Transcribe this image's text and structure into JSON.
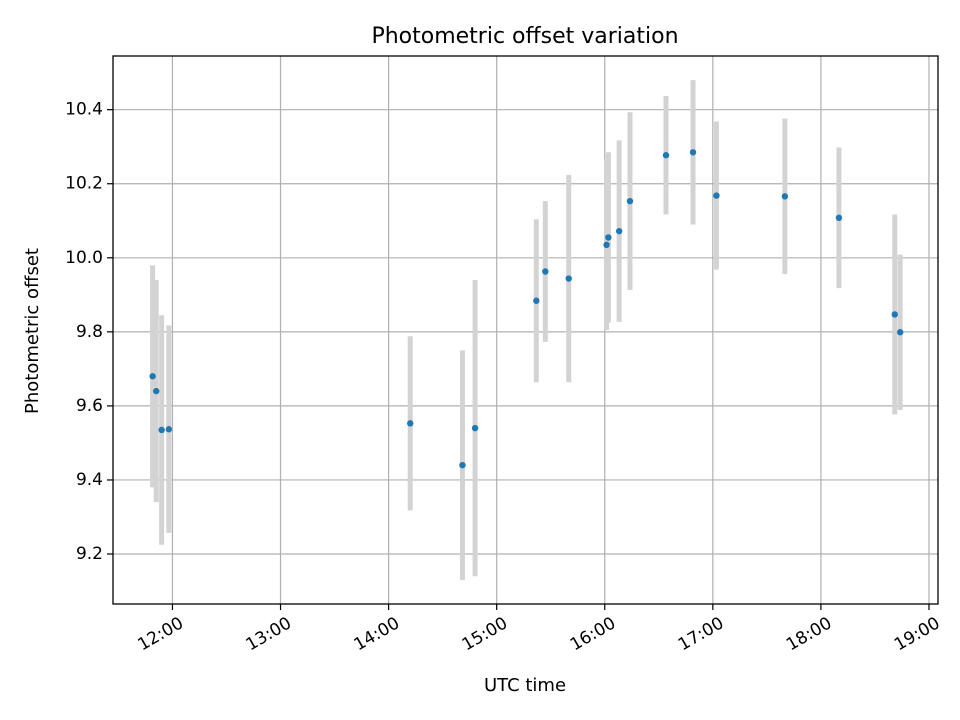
{
  "chart_data": {
    "type": "scatter",
    "title": "Photometric offset variation",
    "xlabel": "UTC time",
    "ylabel": "Photometric offset",
    "grid": true,
    "legend": "none",
    "x_ticks": [
      "12:00",
      "13:00",
      "14:00",
      "15:00",
      "16:00",
      "17:00",
      "18:00",
      "19:00"
    ],
    "y_ticks": [
      "9.2",
      "9.4",
      "9.6",
      "9.8",
      "10.0",
      "10.2",
      "10.4"
    ],
    "xlim": [
      "11:27",
      "19:05"
    ],
    "ylim": [
      9.065,
      10.545
    ],
    "point_color": "#1f77b4",
    "errorbar_color": "#d3d3d3",
    "series": [
      {
        "points": [
          {
            "x": "11:49",
            "y": 9.68,
            "err": 0.3
          },
          {
            "x": "11:51",
            "y": 9.64,
            "err": 0.3
          },
          {
            "x": "11:54",
            "y": 9.535,
            "err": 0.31
          },
          {
            "x": "11:58",
            "y": 9.537,
            "err": 0.28
          },
          {
            "x": "14:12",
            "y": 9.553,
            "err": 0.235
          },
          {
            "x": "14:41",
            "y": 9.44,
            "err": 0.31
          },
          {
            "x": "14:48",
            "y": 9.54,
            "err": 0.4
          },
          {
            "x": "15:22",
            "y": 9.884,
            "err": 0.22
          },
          {
            "x": "15:27",
            "y": 9.963,
            "err": 0.19
          },
          {
            "x": "15:40",
            "y": 9.944,
            "err": 0.28
          },
          {
            "x": "16:01",
            "y": 10.035,
            "err": 0.23
          },
          {
            "x": "16:02",
            "y": 10.055,
            "err": 0.23
          },
          {
            "x": "16:08",
            "y": 10.072,
            "err": 0.245
          },
          {
            "x": "16:14",
            "y": 10.153,
            "err": 0.24
          },
          {
            "x": "16:34",
            "y": 10.277,
            "err": 0.16
          },
          {
            "x": "16:49",
            "y": 10.285,
            "err": 0.195
          },
          {
            "x": "17:02",
            "y": 10.168,
            "err": 0.2
          },
          {
            "x": "17:40",
            "y": 10.166,
            "err": 0.21
          },
          {
            "x": "18:10",
            "y": 10.108,
            "err": 0.19
          },
          {
            "x": "18:41",
            "y": 9.847,
            "err": 0.27
          },
          {
            "x": "18:44",
            "y": 9.799,
            "err": 0.21
          }
        ]
      }
    ]
  }
}
